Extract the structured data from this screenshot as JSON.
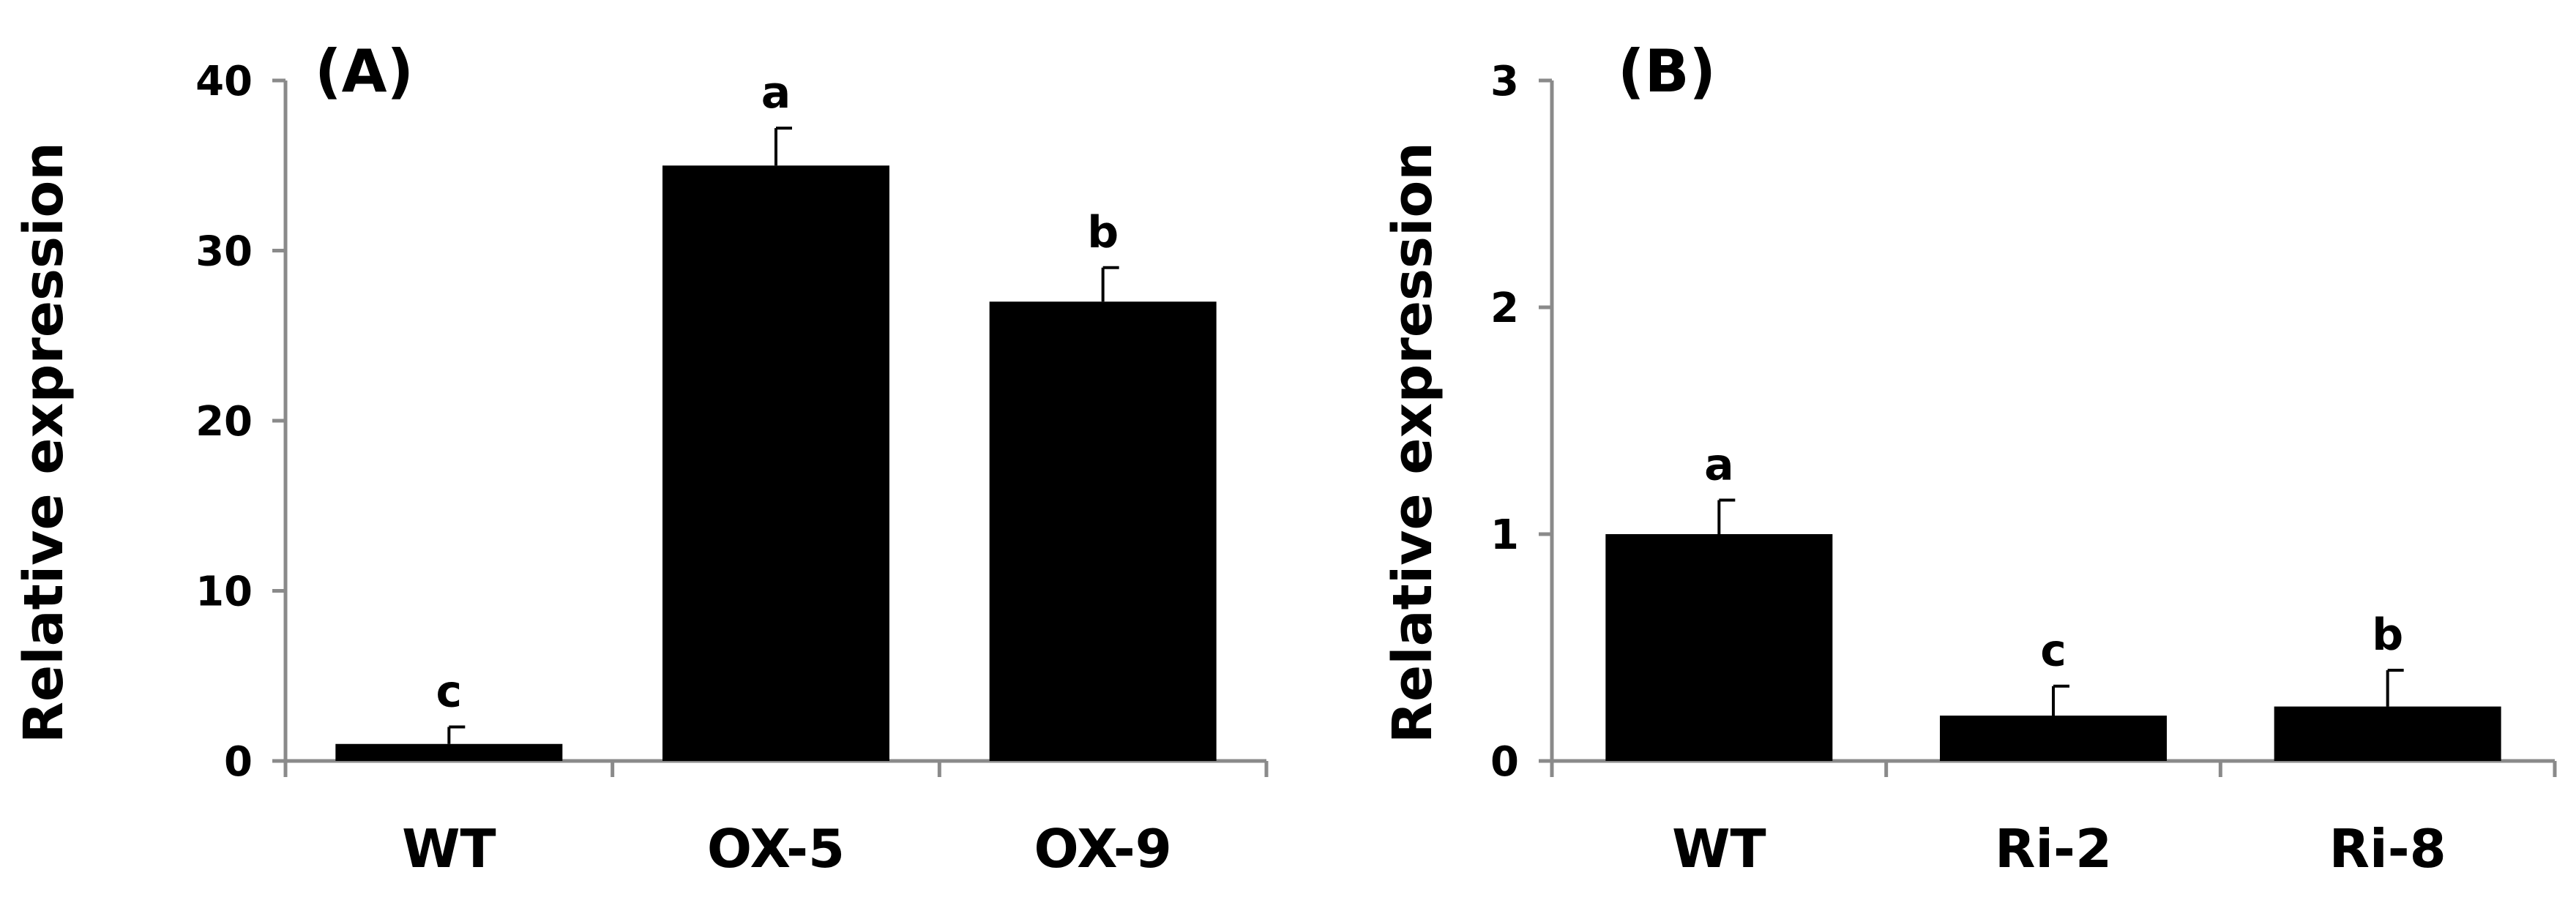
{
  "chart_data": [
    {
      "type": "bar",
      "panel_label": "(A)",
      "ylabel": "Relative expression",
      "ylim": [
        0,
        40
      ],
      "yticks": [
        "0",
        "10",
        "20",
        "30",
        "40"
      ],
      "categories": [
        "WT",
        "OX-5",
        "OX-9"
      ],
      "values": [
        1,
        35,
        27
      ],
      "errors": [
        1.0,
        2.2,
        2.0
      ],
      "significance": [
        "c",
        "a",
        "b"
      ],
      "bar_color": "#000000"
    },
    {
      "type": "bar",
      "panel_label": "(B)",
      "ylabel": "Relative expression",
      "ylim": [
        0,
        3
      ],
      "yticks": [
        "0",
        "1",
        "2",
        "3"
      ],
      "categories": [
        "WT",
        "Ri-2",
        "Ri-8"
      ],
      "values": [
        1.0,
        0.2,
        0.24
      ],
      "errors": [
        0.15,
        0.13,
        0.16
      ],
      "significance": [
        "a",
        "c",
        "b"
      ],
      "bar_color": "#000000"
    }
  ]
}
